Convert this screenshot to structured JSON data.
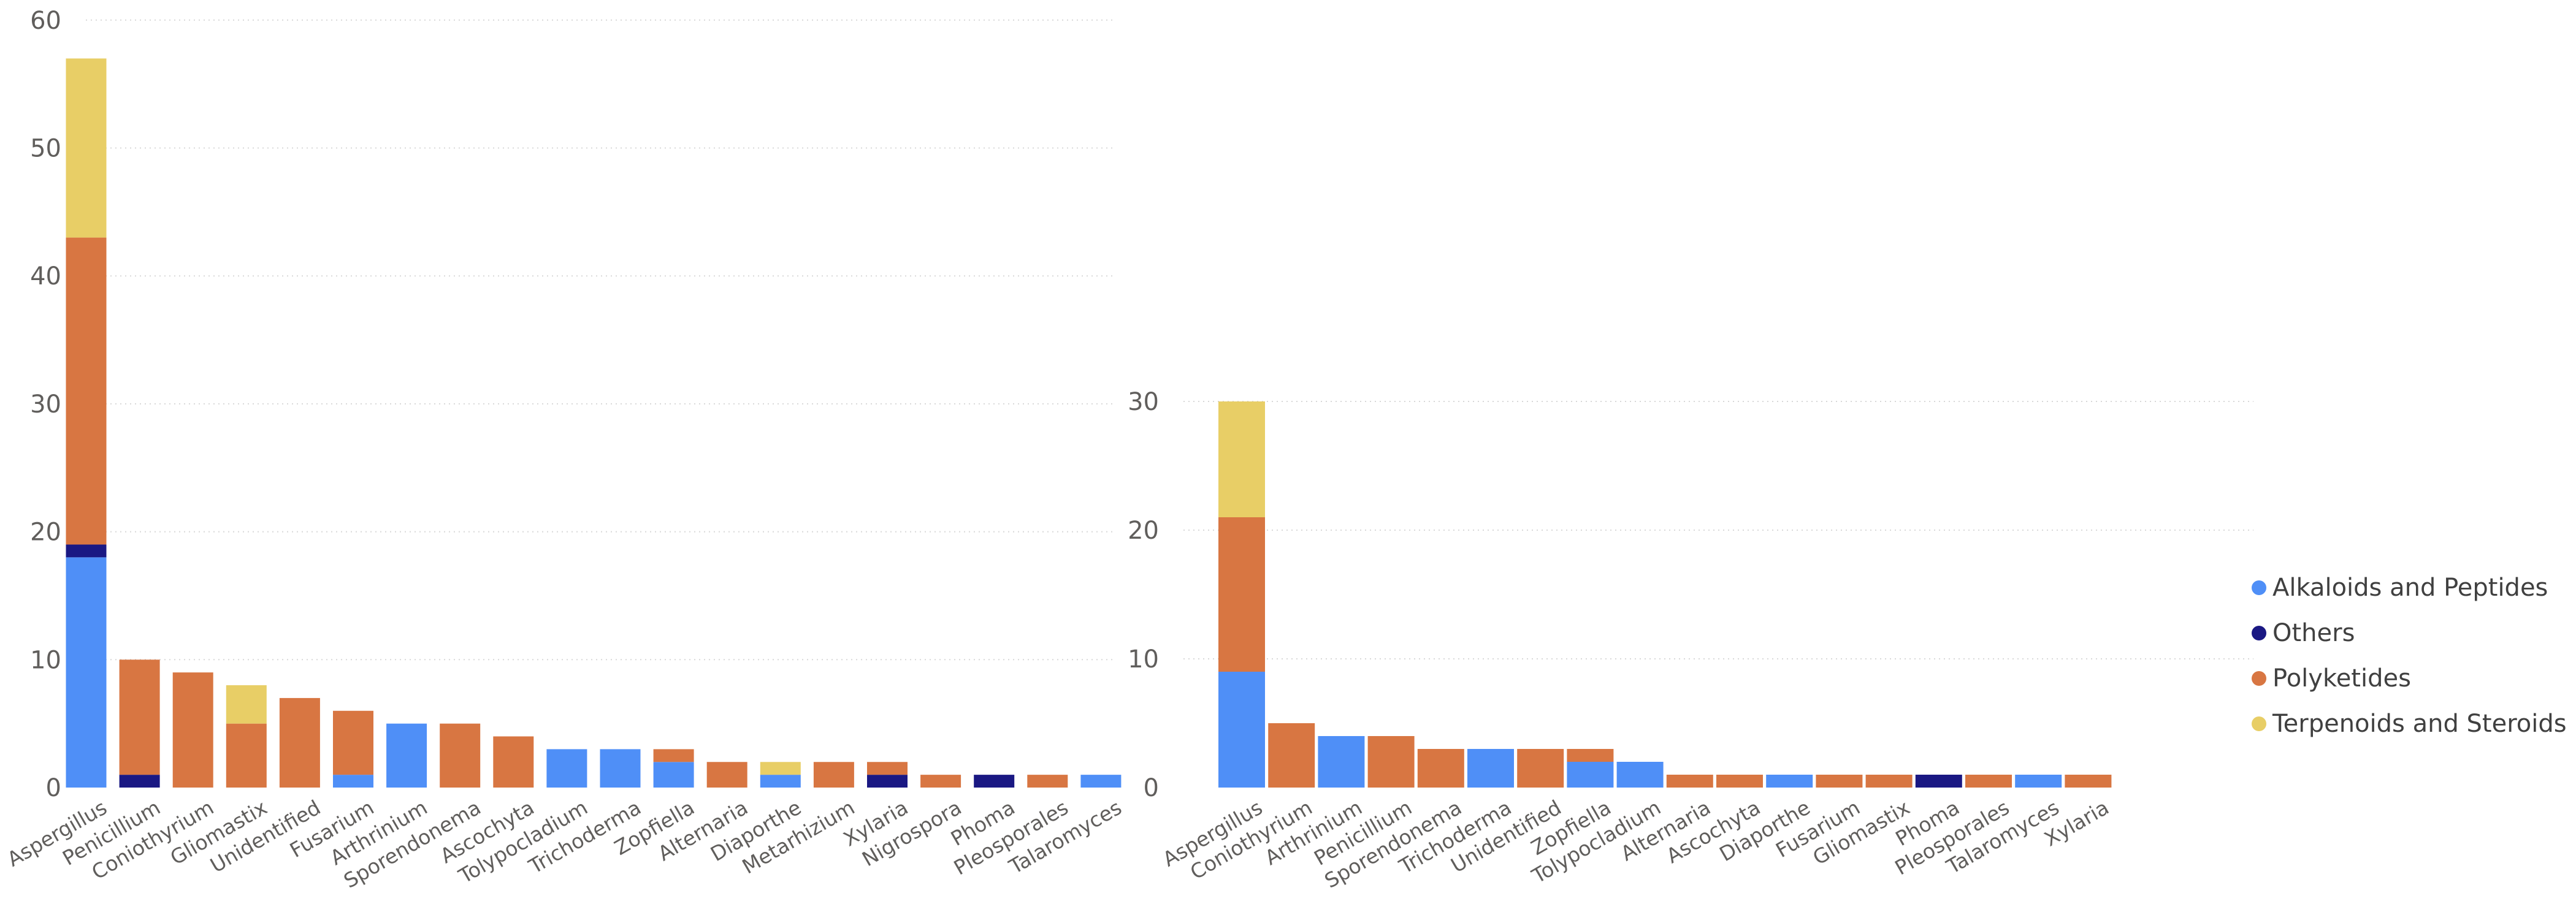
{
  "colors": {
    "Alkaloids and Peptides": "#4f8ff7",
    "Others": "#1a1883",
    "Polyketides": "#d87642",
    "Terpenoids and Steroids": "#e8ce66",
    "grid": "#d8d8d8",
    "tick_text": "#605e5c"
  },
  "legend": {
    "items": [
      {
        "label": "Alkaloids and Peptides",
        "color": "#4f8ff7"
      },
      {
        "label": "Others",
        "color": "#1a1883"
      },
      {
        "label": "Polyketides",
        "color": "#d87642"
      },
      {
        "label": "Terpenoids and Steroids",
        "color": "#e8ce66"
      }
    ],
    "position": "right"
  },
  "chart_data": [
    {
      "type": "bar",
      "stacked": true,
      "grid": true,
      "title": "",
      "xlabel": "",
      "ylabel": "",
      "ylim": [
        0,
        60
      ],
      "yticks": [
        0,
        10,
        20,
        30,
        40,
        50,
        60
      ],
      "categories": [
        "Aspergillus",
        "Penicillium",
        "Coniothyrium",
        "Gliomastix",
        "Unidentified",
        "Fusarium",
        "Arthrinium",
        "Sporendonema",
        "Ascochyta",
        "Tolypocladium",
        "Trichoderma",
        "Zopfiella",
        "Alternaria",
        "Diaporthe",
        "Metarhizium",
        "Xylaria",
        "Nigrospora",
        "Phoma",
        "Pleosporales",
        "Talaromyces"
      ],
      "series": [
        {
          "name": "Alkaloids and Peptides",
          "values": [
            18,
            0,
            0,
            0,
            0,
            1,
            5,
            0,
            0,
            3,
            3,
            2,
            0,
            1,
            0,
            0,
            0,
            0,
            0,
            1
          ]
        },
        {
          "name": "Others",
          "values": [
            1,
            1,
            0,
            0,
            0,
            0,
            0,
            0,
            0,
            0,
            0,
            0,
            0,
            0,
            0,
            1,
            0,
            1,
            0,
            0
          ]
        },
        {
          "name": "Polyketides",
          "values": [
            24,
            9,
            9,
            5,
            7,
            5,
            0,
            5,
            4,
            0,
            0,
            1,
            2,
            0,
            2,
            1,
            1,
            0,
            1,
            0
          ]
        },
        {
          "name": "Terpenoids and Steroids",
          "values": [
            14,
            0,
            0,
            3,
            0,
            0,
            0,
            0,
            0,
            0,
            0,
            0,
            0,
            1,
            0,
            0,
            0,
            0,
            0,
            0
          ]
        }
      ]
    },
    {
      "type": "bar",
      "stacked": true,
      "grid": true,
      "title": "",
      "xlabel": "",
      "ylabel": "",
      "ylim": [
        0,
        30
      ],
      "yticks": [
        0,
        10,
        20,
        30
      ],
      "categories": [
        "Aspergillus",
        "Coniothyrium",
        "Arthrinium",
        "Penicillium",
        "Sporendonema",
        "Trichoderma",
        "Unidentified",
        "Zopfiella",
        "Tolypocladium",
        "Alternaria",
        "Ascochyta",
        "Diaporthe",
        "Fusarium",
        "Gliomastix",
        "Phoma",
        "Pleosporales",
        "Talaromyces",
        "Xylaria"
      ],
      "series": [
        {
          "name": "Alkaloids and Peptides",
          "values": [
            9,
            0,
            4,
            0,
            0,
            3,
            0,
            2,
            2,
            0,
            0,
            1,
            0,
            0,
            0,
            0,
            1,
            0
          ]
        },
        {
          "name": "Others",
          "values": [
            0,
            0,
            0,
            0,
            0,
            0,
            0,
            0,
            0,
            0,
            0,
            0,
            0,
            0,
            1,
            0,
            0,
            0
          ]
        },
        {
          "name": "Polyketides",
          "values": [
            12,
            5,
            0,
            4,
            3,
            0,
            3,
            1,
            0,
            1,
            1,
            0,
            1,
            1,
            0,
            1,
            0,
            1
          ]
        },
        {
          "name": "Terpenoids and Steroids",
          "values": [
            9,
            0,
            0,
            0,
            0,
            0,
            0,
            0,
            0,
            0,
            0,
            0,
            0,
            0,
            0,
            0,
            0,
            0
          ]
        }
      ]
    }
  ]
}
